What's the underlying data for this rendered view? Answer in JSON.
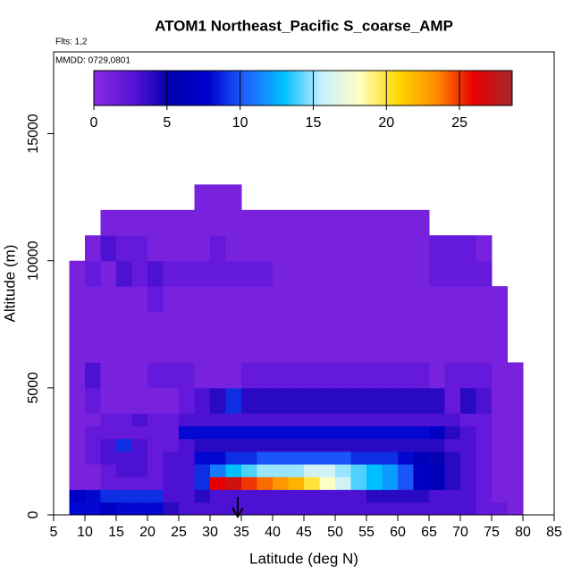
{
  "chart_data": {
    "type": "heatmap",
    "title": "ATOM1 Northeast_Pacific S_coarse_AMP",
    "flights_label": "Flts: 1,2",
    "date_label": "MMDD: 0729,0801",
    "x_label": "Latitude (deg N)",
    "y_label": "Altitude (m)",
    "xlim": [
      5,
      85
    ],
    "xticks": [
      5,
      10,
      15,
      20,
      25,
      30,
      35,
      40,
      45,
      50,
      55,
      60,
      65,
      70,
      75,
      80,
      85
    ],
    "ylim": [
      0,
      18220
    ],
    "yticks": [
      0,
      5000,
      10000,
      15000
    ],
    "lat_edges": [
      7.5,
      10,
      12.5,
      15,
      17.5,
      20,
      22.5,
      25,
      27.5,
      30,
      32.5,
      35,
      37.5,
      40,
      42.5,
      45,
      47.5,
      50,
      52.5,
      55,
      57.5,
      60,
      62.5,
      65,
      67.5,
      70,
      72.5,
      75,
      77.5,
      80
    ],
    "alt_edges": [
      0,
      500,
      1000,
      1500,
      2000,
      2500,
      3000,
      3500,
      4000,
      5000,
      6000,
      7000,
      8000,
      9000,
      10000,
      11000,
      12000,
      13000
    ],
    "values": [
      [
        8,
        8,
        7,
        8,
        8,
        8,
        4,
        3,
        3,
        3,
        3,
        3,
        3,
        3,
        3,
        3,
        3,
        3,
        3,
        3,
        3,
        3,
        3,
        3,
        3,
        3,
        2,
        2,
        1
      ],
      [
        7,
        8,
        9,
        9,
        9,
        9,
        3,
        3,
        4,
        3,
        3,
        3,
        3,
        3,
        3,
        3,
        3,
        3,
        3,
        4,
        4,
        4,
        4,
        3,
        3,
        3,
        2,
        1,
        1
      ],
      [
        1,
        1,
        2,
        2,
        2,
        2,
        3,
        3,
        9,
        26,
        27,
        25,
        24,
        23,
        22,
        20,
        18,
        16,
        14,
        13,
        12,
        10,
        7,
        6,
        4,
        3,
        2,
        1,
        1
      ],
      [
        1,
        1,
        2,
        3,
        3,
        2,
        3,
        3,
        9,
        11,
        13,
        14,
        15,
        15,
        15,
        16,
        16,
        15,
        14,
        13,
        12,
        10,
        7,
        6,
        4,
        3,
        2,
        1,
        1
      ],
      [
        1,
        2,
        3,
        3,
        3,
        2,
        3,
        3,
        8,
        8,
        9,
        9,
        10,
        10,
        10,
        10,
        10,
        10,
        9,
        9,
        9,
        8,
        6,
        5,
        4,
        3,
        2,
        1,
        1
      ],
      [
        1,
        2,
        3,
        9,
        3,
        2,
        2,
        3,
        4,
        4,
        4,
        4,
        4,
        4,
        4,
        4,
        4,
        4,
        4,
        4,
        4,
        4,
        4,
        4,
        3,
        3,
        2,
        1,
        1
      ],
      [
        1,
        2,
        2,
        2,
        2,
        2,
        2,
        8,
        8,
        8,
        8,
        8,
        8,
        8,
        8,
        8,
        8,
        8,
        8,
        8,
        8,
        8,
        8,
        7,
        4,
        3,
        2,
        1,
        1
      ],
      [
        1,
        1,
        2,
        2,
        3,
        2,
        2,
        3,
        3,
        3,
        3,
        3,
        3,
        3,
        3,
        3,
        3,
        3,
        3,
        3,
        3,
        3,
        3,
        3,
        3,
        2,
        2,
        1,
        1
      ],
      [
        1,
        2,
        1,
        1,
        1,
        1,
        1,
        2,
        3,
        4,
        9,
        4,
        4,
        4,
        4,
        4,
        4,
        4,
        4,
        4,
        4,
        4,
        4,
        4,
        2,
        4,
        3,
        1,
        1
      ],
      [
        1,
        3,
        1,
        1,
        1,
        2,
        2,
        2,
        1,
        1,
        1,
        2,
        2,
        2,
        2,
        2,
        2,
        2,
        2,
        2,
        2,
        2,
        2,
        1,
        2,
        2,
        2,
        1,
        1
      ],
      [
        1,
        1,
        1,
        1,
        1,
        1,
        1,
        1,
        1,
        1,
        1,
        1,
        1,
        1,
        1,
        1,
        1,
        1,
        1,
        1,
        1,
        1,
        1,
        1,
        1,
        1,
        1,
        1,
        null
      ],
      [
        1,
        1,
        1,
        1,
        1,
        1,
        1,
        1,
        1,
        1,
        1,
        1,
        1,
        1,
        1,
        1,
        1,
        1,
        1,
        1,
        1,
        1,
        1,
        1,
        1,
        1,
        1,
        1,
        null
      ],
      [
        1,
        1,
        1,
        1,
        1,
        2,
        1,
        1,
        1,
        1,
        1,
        1,
        1,
        1,
        1,
        1,
        1,
        1,
        1,
        1,
        1,
        1,
        1,
        1,
        1,
        1,
        1,
        1,
        null
      ],
      [
        1,
        2,
        1,
        3,
        2,
        3,
        2,
        2,
        2,
        2,
        2,
        2,
        2,
        1,
        1,
        1,
        1,
        1,
        1,
        1,
        1,
        1,
        1,
        2,
        2,
        2,
        2,
        null,
        null
      ],
      [
        null,
        1,
        3,
        2,
        2,
        1,
        1,
        1,
        1,
        2,
        1,
        1,
        1,
        1,
        1,
        1,
        1,
        1,
        1,
        1,
        1,
        1,
        1,
        2,
        2,
        2,
        1,
        null,
        null
      ],
      [
        null,
        null,
        1,
        1,
        1,
        1,
        1,
        1,
        1,
        1,
        1,
        1,
        1,
        1,
        1,
        1,
        1,
        1,
        1,
        1,
        1,
        1,
        1,
        null,
        null,
        null,
        null,
        null,
        null
      ],
      [
        null,
        null,
        null,
        null,
        null,
        null,
        null,
        null,
        1,
        1,
        1,
        null,
        null,
        null,
        null,
        null,
        null,
        null,
        null,
        null,
        null,
        null,
        null,
        null,
        null,
        null,
        null,
        null,
        null
      ]
    ],
    "colorbar": {
      "lim": [
        0,
        28.6
      ],
      "ticks": [
        0,
        5,
        10,
        15,
        20,
        25
      ],
      "colors": [
        "#8a2be2",
        "#5a14d8",
        "#0000b0",
        "#0000cd",
        "#1e64ff",
        "#00bfff",
        "#c8f0ff",
        "#ffffc0",
        "#ffd700",
        "#ff8c00",
        "#e60000",
        "#a52a2a"
      ]
    }
  }
}
